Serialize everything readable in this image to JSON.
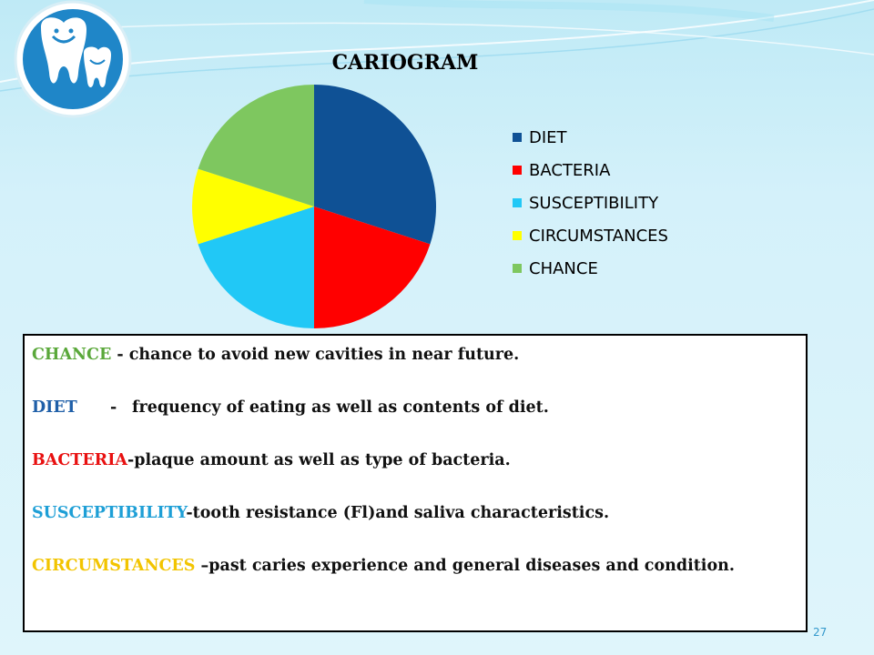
{
  "colors": {
    "diet": "#0f5195",
    "bacteria": "#ff0000",
    "susceptibility": "#21c8f6",
    "circumstances": "#ffff00",
    "chance": "#7ec75f"
  },
  "logo": {
    "icon": "smiling-teeth-logo"
  },
  "chart_data": {
    "type": "pie",
    "title": "CARIOGRAM",
    "categories": [
      "DIET",
      "BACTERIA",
      "SUSCEPTIBILITY",
      "CIRCUMSTANCES",
      "CHANCE"
    ],
    "values": [
      30,
      20,
      20,
      10,
      20
    ],
    "legend_position": "right"
  },
  "info": {
    "chance_key": "CHANCE",
    "chance_text": " - chance to avoid new cavities in near future.",
    "diet_key": "DIET",
    "diet_text": "frequency of eating as well as contents of diet.",
    "diet_sep": "-",
    "bacteria_key": "BACTERIA",
    "bacteria_text": "-plaque amount as well as type of bacteria.",
    "susceptibility_key": "SUSCEPTIBILITY",
    "susceptibility_text": "-tooth resistance (Fl)and saliva characteristics.",
    "circumstances_key": "CIRCUMSTANCES",
    "circumstances_text": " –past caries experience and general diseases and condition."
  },
  "page_number": "27"
}
